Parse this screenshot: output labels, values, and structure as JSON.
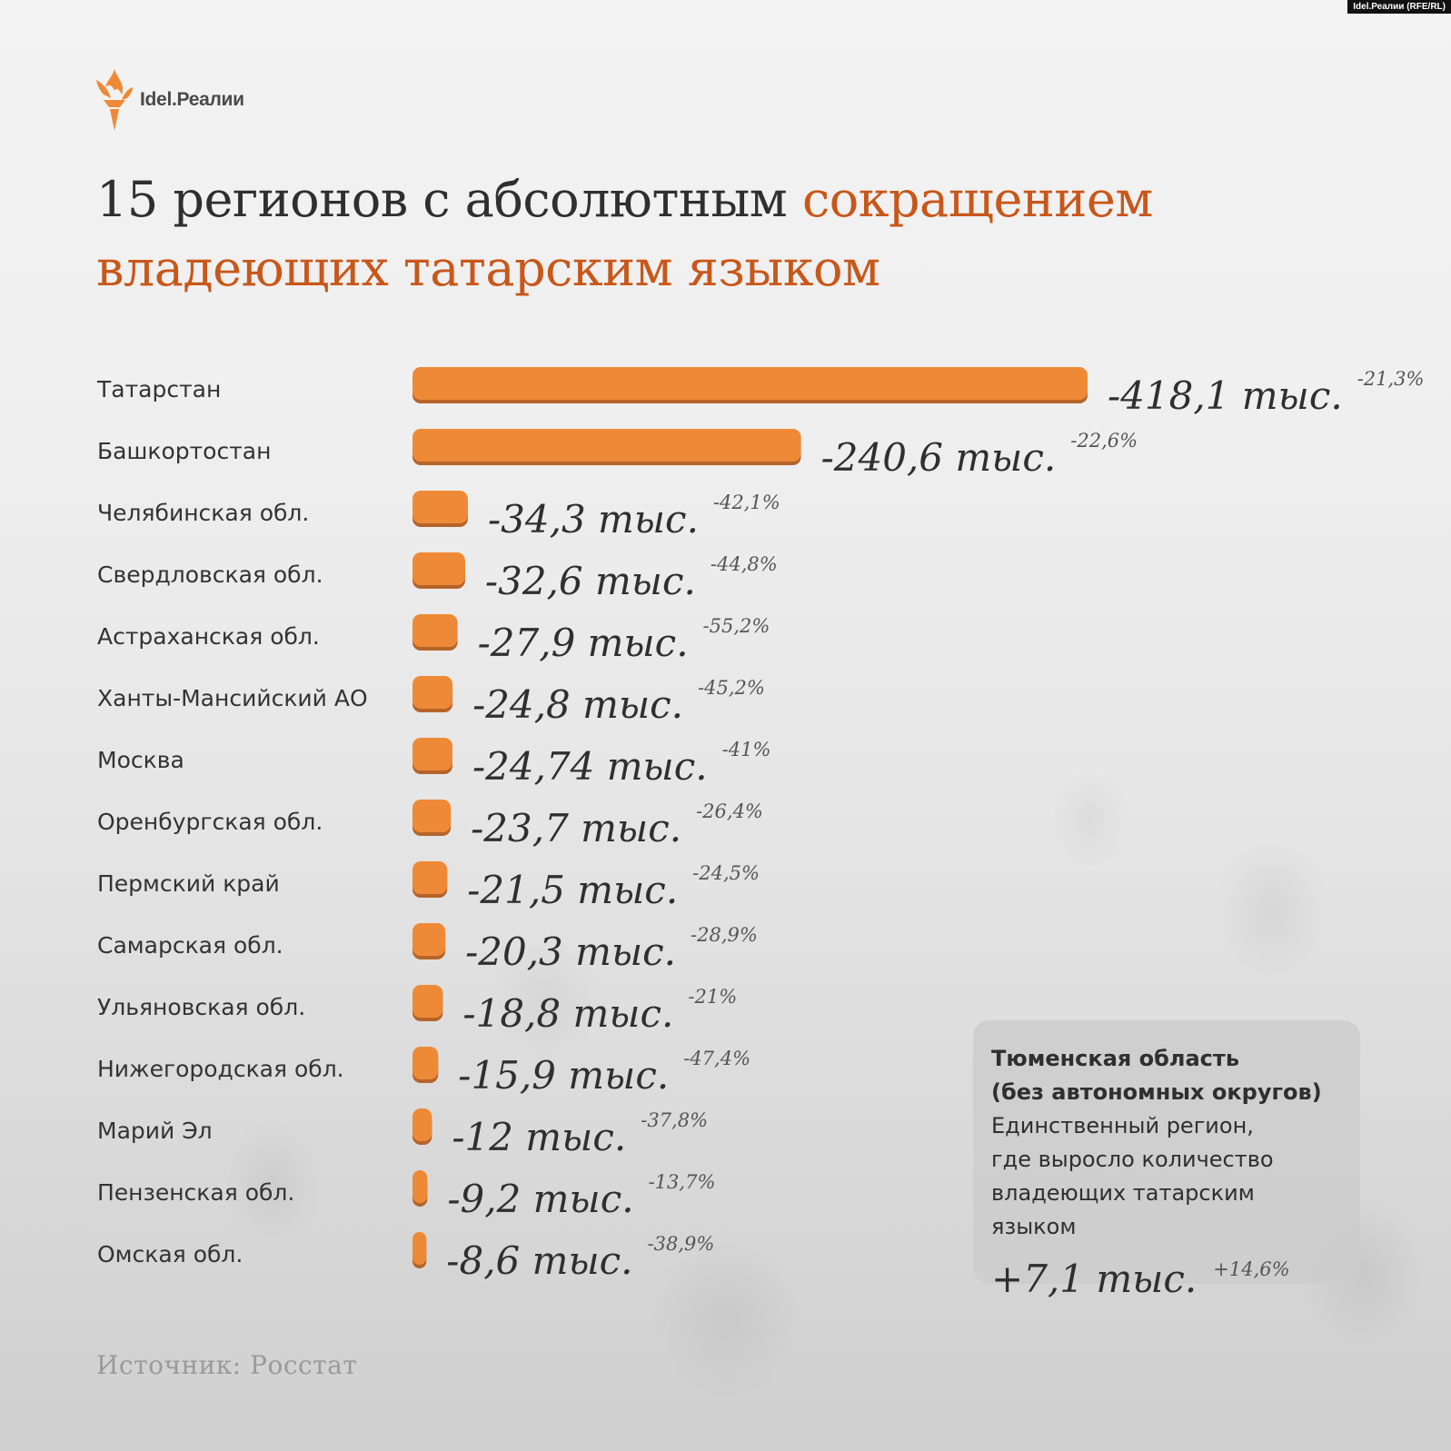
{
  "agency": "Idel.Реалии (RFE/RL)",
  "logo_text": "Idel.Реалии",
  "title": {
    "part1": "15 регионов с абсолютным ",
    "part2": "сокращением владеющих татарским языком"
  },
  "colors": {
    "bar": "#ee8a37",
    "bar_shadow": "#b5642a",
    "accent": "#c8571a"
  },
  "chart_data": {
    "type": "bar",
    "orientation": "horizontal",
    "categories": [
      "Татарстан",
      "Башкортостан",
      "Челябинская обл.",
      "Свердловская обл.",
      "Астраханская обл.",
      "Ханты-Мансийский АО",
      "Москва",
      "Оренбургская обл.",
      "Пермский край",
      "Самарская обл.",
      "Ульяновская обл.",
      "Нижегородская обл.",
      "Марий Эл",
      "Пензенская обл.",
      "Омская обл."
    ],
    "values": [
      418.1,
      240.6,
      34.3,
      32.6,
      27.9,
      24.8,
      24.74,
      23.7,
      21.5,
      20.3,
      18.8,
      15.9,
      12,
      9.2,
      8.6
    ],
    "value_labels": [
      "-418,1 тыс.",
      "-240,6 тыс.",
      "-34,3 тыс.",
      "-32,6 тыс.",
      "-27,9 тыс.",
      "-24,8 тыс.",
      "-24,74 тыс.",
      "-23,7 тыс.",
      "-21,5 тыс.",
      "-20,3 тыс.",
      "-18,8 тыс.",
      "-15,9 тыс.",
      "-12 тыс.",
      "-9,2 тыс.",
      "-8,6 тыс."
    ],
    "percent_labels": [
      "-21,3%",
      "-22,6%",
      "-42,1%",
      "-44,8%",
      "-55,2%",
      "-45,2%",
      "-41%",
      "-26,4%",
      "-24,5%",
      "-28,9%",
      "-21%",
      "-47,4%",
      "-37,8%",
      "-13,7%",
      "-38,9%"
    ]
  },
  "info_box": {
    "heading_line1": "Тюменская область",
    "heading_line2": "(без автономных округов)",
    "text_line1": "Единственный регион,",
    "text_line2": "где выросло количество",
    "text_line3": "владеющих татарским языком",
    "value": "+7,1 тыс.",
    "percent": "+14,6%"
  },
  "source": "Источник: Росстат"
}
